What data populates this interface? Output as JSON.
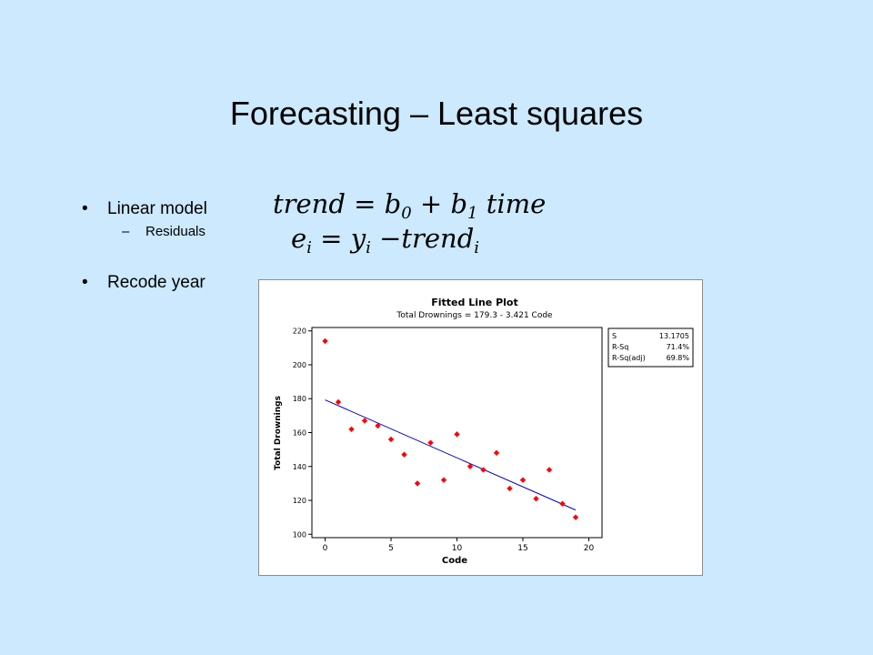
{
  "slide": {
    "title": "Forecasting – Least squares",
    "bullets": [
      {
        "text": "Linear model",
        "subitems": [
          "Residuals"
        ]
      },
      {
        "text": "Recode year",
        "subitems": []
      }
    ],
    "bullet_glyph": "•",
    "dash_glyph": "–",
    "formulas": {
      "trend": {
        "lhs": "trend",
        "b0": "b",
        "b0_sub": "0",
        "b1": "b",
        "b1_sub": "1",
        "time": "time"
      },
      "residual": {
        "e": "e",
        "e_sub": "i",
        "y": "y",
        "y_sub": "i",
        "trend": "trend",
        "trend_sub": "i"
      }
    }
  },
  "chart_data": {
    "type": "scatter",
    "title": "Fitted Line Plot",
    "subtitle": "Total Drownings = 179.3 - 3.421 Code",
    "xlabel": "Code",
    "ylabel": "Total Drownings",
    "xlim": [
      -1,
      21
    ],
    "ylim": [
      98,
      222
    ],
    "xticks": [
      0,
      5,
      10,
      15,
      20
    ],
    "yticks": [
      100,
      120,
      140,
      160,
      180,
      200,
      220
    ],
    "points": {
      "x": [
        0,
        1,
        2,
        3,
        4,
        5,
        6,
        7,
        8,
        9,
        10,
        11,
        12,
        13,
        14,
        15,
        16,
        17,
        18,
        19
      ],
      "y": [
        214,
        178,
        162,
        167,
        164,
        156,
        147,
        130,
        154,
        132,
        159,
        140,
        138,
        148,
        127,
        132,
        121,
        138,
        118,
        110
      ]
    },
    "fit": {
      "intercept": 179.3,
      "slope": -3.421,
      "x_range": [
        0,
        19
      ]
    },
    "stats": [
      {
        "label": "S",
        "value": "13.1705"
      },
      {
        "label": "R-Sq",
        "value": "71.4%"
      },
      {
        "label": "R-Sq(adj)",
        "value": "69.8%"
      }
    ],
    "marker_color": "#ff0000",
    "line_color": "#0000c8",
    "grid": false,
    "stats_box_position": "top-right"
  }
}
